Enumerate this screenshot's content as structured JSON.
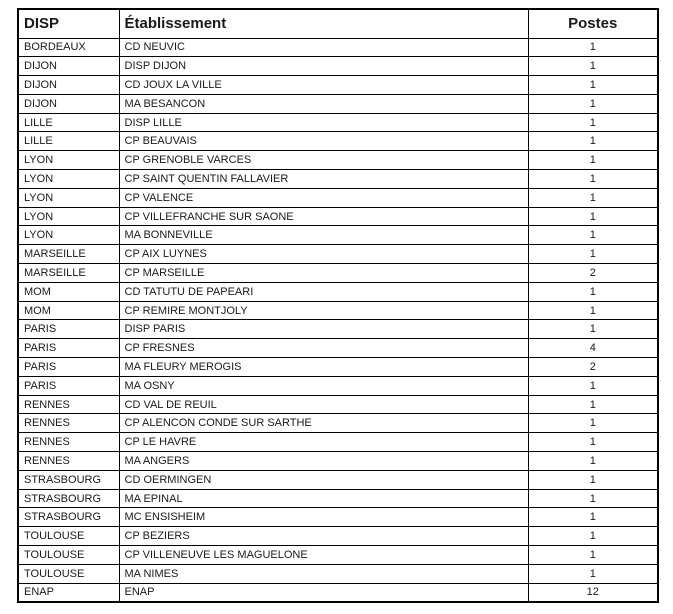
{
  "colors": {
    "border": "#000000",
    "text": "#1a1a1a",
    "background": "#ffffff"
  },
  "table": {
    "columns": [
      "DISP",
      "Établissement",
      "Postes"
    ],
    "rows": [
      {
        "disp": "BORDEAUX",
        "etablissement": "CD NEUVIC",
        "postes": 1
      },
      {
        "disp": "DIJON",
        "etablissement": "DISP DIJON",
        "postes": 1
      },
      {
        "disp": "DIJON",
        "etablissement": "CD JOUX LA VILLE",
        "postes": 1
      },
      {
        "disp": "DIJON",
        "etablissement": "MA BESANCON",
        "postes": 1
      },
      {
        "disp": "LILLE",
        "etablissement": "DISP LILLE",
        "postes": 1
      },
      {
        "disp": "LILLE",
        "etablissement": "CP BEAUVAIS",
        "postes": 1
      },
      {
        "disp": "LYON",
        "etablissement": "CP GRENOBLE VARCES",
        "postes": 1
      },
      {
        "disp": "LYON",
        "etablissement": "CP SAINT QUENTIN FALLAVIER",
        "postes": 1
      },
      {
        "disp": "LYON",
        "etablissement": "CP VALENCE",
        "postes": 1
      },
      {
        "disp": "LYON",
        "etablissement": "CP VILLEFRANCHE SUR SAONE",
        "postes": 1
      },
      {
        "disp": "LYON",
        "etablissement": "MA BONNEVILLE",
        "postes": 1
      },
      {
        "disp": "MARSEILLE",
        "etablissement": "CP AIX LUYNES",
        "postes": 1
      },
      {
        "disp": "MARSEILLE",
        "etablissement": "CP MARSEILLE",
        "postes": 2
      },
      {
        "disp": "MOM",
        "etablissement": "CD TATUTU DE PAPEARI",
        "postes": 1
      },
      {
        "disp": "MOM",
        "etablissement": "CP REMIRE MONTJOLY",
        "postes": 1
      },
      {
        "disp": "PARIS",
        "etablissement": "DISP PARIS",
        "postes": 1
      },
      {
        "disp": "PARIS",
        "etablissement": "CP FRESNES",
        "postes": 4
      },
      {
        "disp": "PARIS",
        "etablissement": "MA FLEURY MEROGIS",
        "postes": 2
      },
      {
        "disp": "PARIS",
        "etablissement": "MA OSNY",
        "postes": 1
      },
      {
        "disp": "RENNES",
        "etablissement": "CD VAL DE REUIL",
        "postes": 1
      },
      {
        "disp": "RENNES",
        "etablissement": "CP ALENCON CONDE SUR SARTHE",
        "postes": 1
      },
      {
        "disp": "RENNES",
        "etablissement": "CP LE HAVRE",
        "postes": 1
      },
      {
        "disp": "RENNES",
        "etablissement": "MA ANGERS",
        "postes": 1
      },
      {
        "disp": "STRASBOURG",
        "etablissement": "CD OERMINGEN",
        "postes": 1
      },
      {
        "disp": "STRASBOURG",
        "etablissement": "MA EPINAL",
        "postes": 1
      },
      {
        "disp": "STRASBOURG",
        "etablissement": "MC ENSISHEIM",
        "postes": 1
      },
      {
        "disp": "TOULOUSE",
        "etablissement": "CP BEZIERS",
        "postes": 1
      },
      {
        "disp": "TOULOUSE",
        "etablissement": "CP VILLENEUVE LES MAGUELONE",
        "postes": 1
      },
      {
        "disp": "TOULOUSE",
        "etablissement": "MA NIMES",
        "postes": 1
      },
      {
        "disp": "ENAP",
        "etablissement": "ENAP",
        "postes": 12
      }
    ]
  }
}
